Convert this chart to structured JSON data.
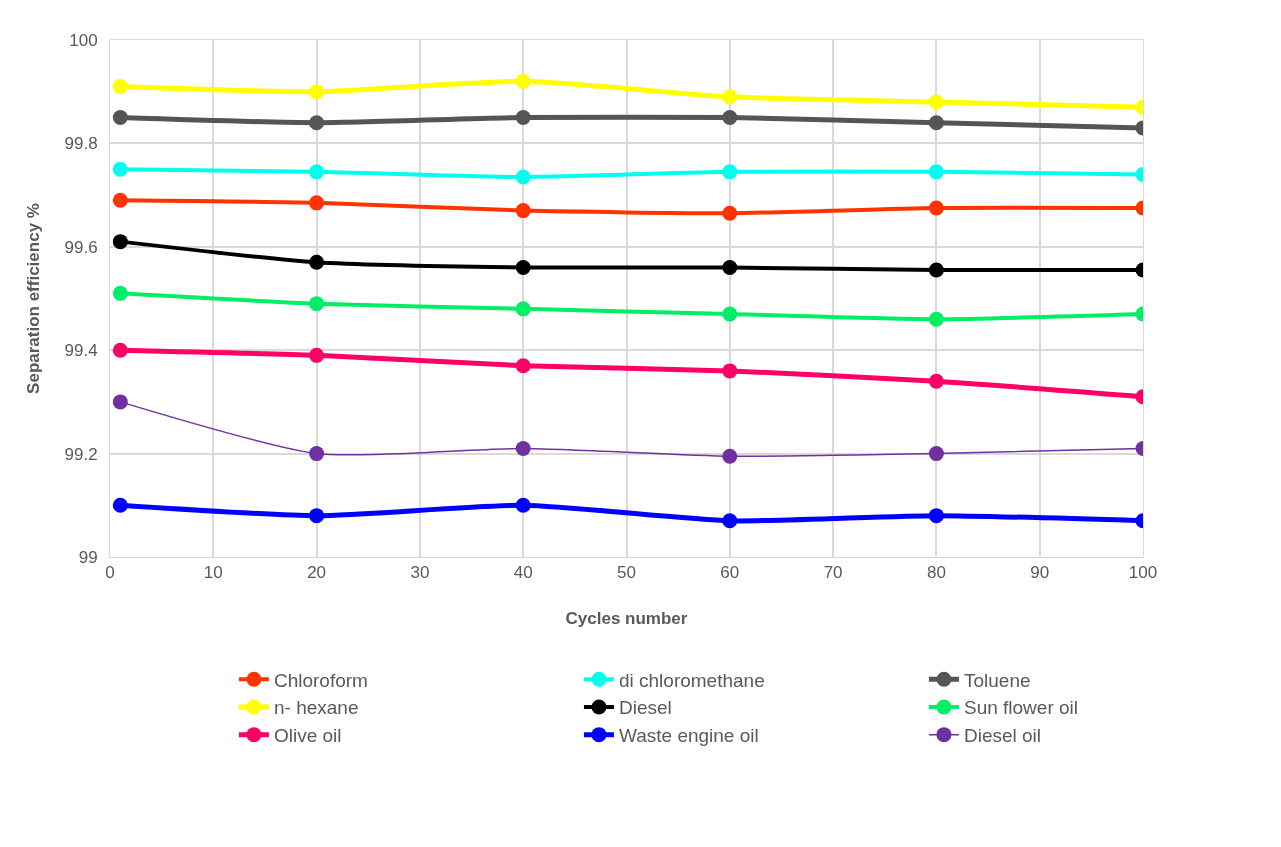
{
  "chart_data": {
    "type": "line",
    "xlabel": "Cycles number",
    "ylabel": "Separation efficiency %",
    "x": [
      1,
      20,
      40,
      60,
      80,
      100
    ],
    "xlim": [
      0,
      100
    ],
    "xticks": [
      0,
      10,
      20,
      30,
      40,
      50,
      60,
      70,
      80,
      90,
      100
    ],
    "ylim": [
      99,
      100
    ],
    "yticks": [
      99,
      99.2,
      99.4,
      99.6,
      99.8,
      100
    ],
    "grid": true,
    "legend": "bottom",
    "marker": "circle",
    "line_style": "solid",
    "series": [
      {
        "name": "Chloroform",
        "color": "#ff3300",
        "values": [
          99.69,
          99.685,
          99.67,
          99.665,
          99.675,
          99.675
        ]
      },
      {
        "name": "di chloromethane",
        "color": "#00ffee",
        "values": [
          99.75,
          99.745,
          99.735,
          99.745,
          99.745,
          99.74
        ]
      },
      {
        "name": "Toluene",
        "color": "#555555",
        "values": [
          99.85,
          99.84,
          99.85,
          99.85,
          99.84,
          99.83
        ]
      },
      {
        "name": "n- hexane",
        "color": "#ffff00",
        "values": [
          99.91,
          99.9,
          99.92,
          99.89,
          99.88,
          99.87
        ]
      },
      {
        "name": "Diesel",
        "color": "#000000",
        "values": [
          99.61,
          99.57,
          99.56,
          99.56,
          99.555,
          99.555
        ]
      },
      {
        "name": "Sun flower oil",
        "color": "#00ee66",
        "values": [
          99.51,
          99.49,
          99.48,
          99.47,
          99.46,
          99.47
        ]
      },
      {
        "name": "Olive oil",
        "color": "#ff0066",
        "values": [
          99.4,
          99.39,
          99.37,
          99.36,
          99.34,
          99.31
        ]
      },
      {
        "name": "Waste engine oil",
        "color": "#0000ff",
        "values": [
          99.1,
          99.08,
          99.1,
          99.07,
          99.08,
          99.07
        ]
      },
      {
        "name": "Diesel oil",
        "color": "#7030a0",
        "values": [
          99.3,
          99.2,
          99.21,
          99.195,
          99.2,
          99.21
        ]
      }
    ]
  }
}
